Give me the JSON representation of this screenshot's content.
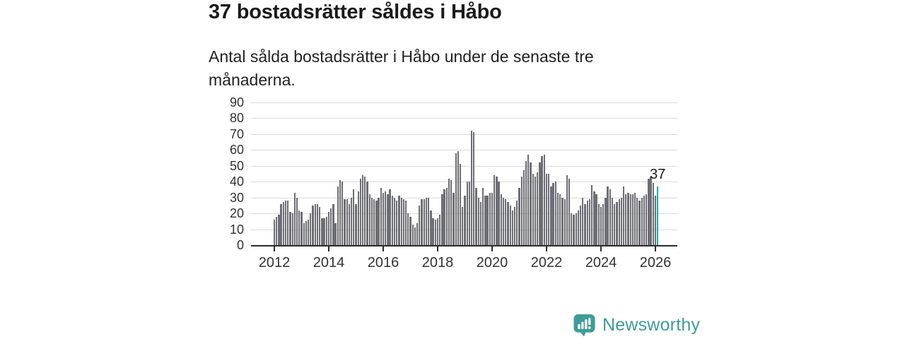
{
  "header": {
    "title": "37 bostadsrätter såldes i Håbo",
    "subtitle_line1": "Antal sålda bostadsrätter i Håbo under de senaste tre",
    "subtitle_line2": "månaderna."
  },
  "annotation": {
    "last_value_label": "37"
  },
  "footer": {
    "brand": "Newsworthy"
  },
  "colors": {
    "bar": "#6e6e76",
    "highlight_bar": "#10a9a7",
    "brand_teal": "#3e9c98",
    "axis_text": "#333333",
    "gridline": "#d9d9d9",
    "axis_line": "#2b2b2b",
    "title_text": "#1a1a1a"
  },
  "chart_data": {
    "type": "bar",
    "title": "37 bostadsrätter såldes i Håbo",
    "subtitle": "Antal sålda bostadsrätter i Håbo under de senaste tre månaderna.",
    "xlabel": "",
    "ylabel": "",
    "ylim": [
      0,
      90
    ],
    "grid": true,
    "y_ticks": [
      0,
      10,
      20,
      30,
      40,
      50,
      60,
      70,
      80,
      90
    ],
    "x_tick_labels": [
      "2012",
      "2014",
      "2016",
      "2018",
      "2020",
      "2022",
      "2024",
      "2026"
    ],
    "x_start_year": 2012,
    "months_per_bar": 1,
    "highlight_index": 169,
    "highlight_value": 37,
    "values": [
      16,
      18,
      19,
      26,
      27,
      28,
      28,
      21,
      20,
      33,
      30,
      22,
      21,
      14,
      15,
      16,
      20,
      25,
      26,
      26,
      24,
      17,
      17,
      18,
      21,
      23,
      26,
      14,
      37,
      41,
      40,
      29,
      29,
      26,
      30,
      35,
      26,
      34,
      42,
      44,
      43,
      40,
      32,
      30,
      29,
      28,
      30,
      36,
      33,
      34,
      32,
      35,
      31,
      30,
      28,
      31,
      30,
      29,
      28,
      20,
      18,
      13,
      11,
      14,
      25,
      29,
      29,
      30,
      30,
      22,
      17,
      16,
      17,
      19,
      32,
      35,
      36,
      42,
      41,
      33,
      58,
      59,
      51,
      24,
      31,
      40,
      40,
      72,
      71,
      36,
      30,
      27,
      36,
      31,
      31,
      33,
      33,
      44,
      43,
      40,
      32,
      30,
      29,
      27,
      25,
      22,
      24,
      28,
      36,
      43,
      47,
      53,
      57,
      52,
      45,
      43,
      46,
      52,
      56,
      57,
      45,
      45,
      37,
      39,
      40,
      33,
      32,
      30,
      29,
      44,
      42,
      20,
      19,
      20,
      22,
      25,
      30,
      26,
      28,
      29,
      38,
      34,
      32,
      26,
      24,
      26,
      30,
      37,
      35,
      30,
      26,
      27,
      29,
      30,
      37,
      32,
      33,
      32,
      32,
      33,
      30,
      28,
      30,
      31,
      32,
      42,
      43,
      39,
      31,
      37
    ]
  }
}
